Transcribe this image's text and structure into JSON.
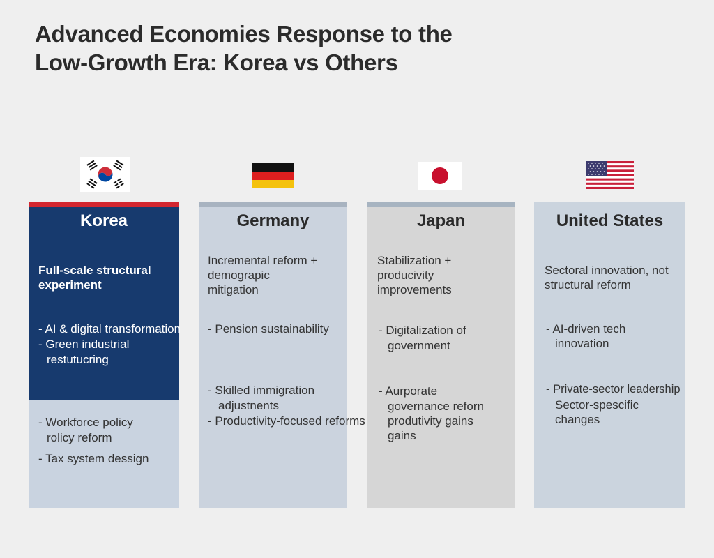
{
  "title_line1": "Advanced Economies Response to the",
  "title_line2": "Low-Growth Era: Korea vs Others",
  "colors": {
    "korea_red": "#d3262f",
    "korea_navy": "#173a6e",
    "panel": "#cbd3de"
  },
  "columns": {
    "korea": {
      "flag_icon": "south-korea-flag-icon",
      "name": "Korea",
      "summary": [
        "Full-scale structural",
        "experiment"
      ],
      "group1": [
        "- AI & digital transformation",
        "- Green industrial",
        "restutucring"
      ],
      "group2": [
        "- Workforce policy",
        "rolicy reform",
        "- Tax system dessign"
      ]
    },
    "germany": {
      "flag_icon": "germany-flag-icon",
      "name": "Germany",
      "summary": [
        "Incremental reform +",
        "demograpic",
        "mitigation"
      ],
      "group1": [
        "- Pension sustainability"
      ],
      "group2": [
        "- Skilled immigration",
        "adjustnents",
        "- Productivity-focused reforms"
      ]
    },
    "japan": {
      "flag_icon": "japan-flag-icon",
      "name": "Japan",
      "summary": [
        "Stabilization +",
        "producivity",
        "improvements"
      ],
      "group1": [
        "- Digitalization of",
        "government"
      ],
      "group2": [
        "- Aurporate",
        "governance reforn",
        "produtivity gains",
        "gains"
      ]
    },
    "us": {
      "flag_icon": "united-states-flag-icon",
      "name": "United States",
      "summary": [
        "Sectoral innovation, not",
        "structural reform"
      ],
      "group1": [
        "- AI-driven tech",
        "innovation"
      ],
      "group2": [
        "- Private-sector leadership",
        "Sector-spescific",
        "changes"
      ]
    }
  }
}
